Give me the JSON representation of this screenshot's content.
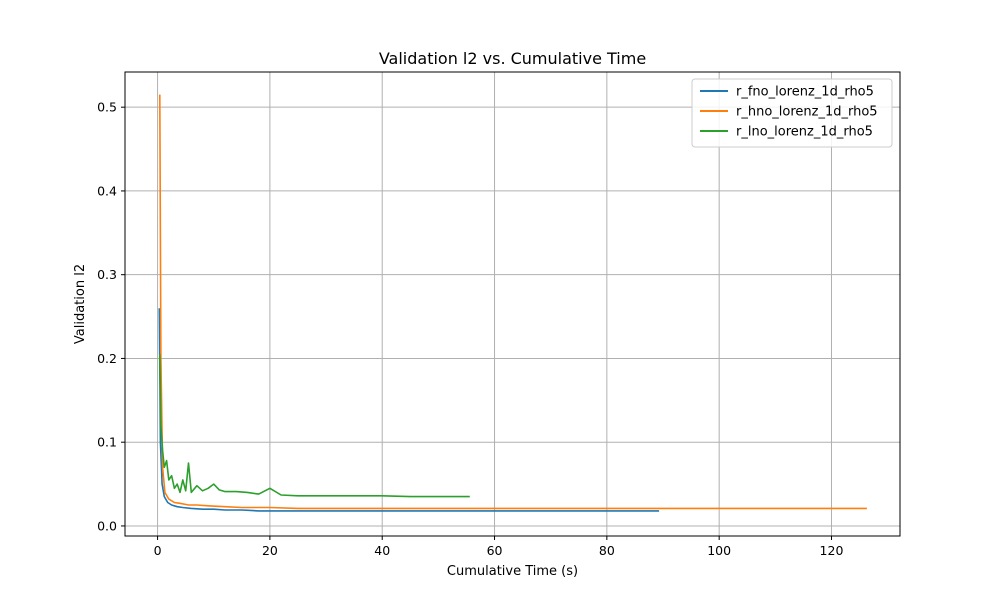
{
  "chart_data": {
    "type": "line",
    "title": "Validation l2 vs. Cumulative Time",
    "xlabel": "Cumulative Time (s)",
    "ylabel": "Validation l2",
    "xlim": [
      -5.8,
      132.2
    ],
    "ylim": [
      -0.012,
      0.542
    ],
    "xticks": [
      0,
      20,
      40,
      60,
      80,
      100,
      120
    ],
    "yticks": [
      0.0,
      0.1,
      0.2,
      0.3,
      0.4,
      0.5
    ],
    "grid": true,
    "legend_position": "top-right",
    "series": [
      {
        "name": "r_fno_lorenz_1d_rho5",
        "color": "#1f77b4",
        "x": [
          0.3,
          0.5,
          0.8,
          1.2,
          1.8,
          2.5,
          3.5,
          4.5,
          6,
          8,
          10,
          12,
          15,
          18,
          20,
          25,
          30,
          40,
          50,
          60,
          70,
          80,
          89.3
        ],
        "y": [
          0.26,
          0.1,
          0.05,
          0.035,
          0.028,
          0.025,
          0.023,
          0.022,
          0.021,
          0.02,
          0.02,
          0.019,
          0.019,
          0.018,
          0.018,
          0.018,
          0.018,
          0.018,
          0.018,
          0.018,
          0.018,
          0.018,
          0.018
        ]
      },
      {
        "name": "r_hno_lorenz_1d_rho5",
        "color": "#ff7f0e",
        "x": [
          0.4,
          0.6,
          0.9,
          1.3,
          2.0,
          3.0,
          4.0,
          5.5,
          7,
          9,
          12,
          15,
          20,
          25,
          30,
          40,
          50,
          60,
          70,
          80,
          90,
          100,
          110,
          120,
          126.3
        ],
        "y": [
          0.515,
          0.2,
          0.07,
          0.04,
          0.032,
          0.028,
          0.027,
          0.025,
          0.025,
          0.024,
          0.023,
          0.022,
          0.022,
          0.021,
          0.021,
          0.021,
          0.021,
          0.021,
          0.021,
          0.021,
          0.021,
          0.021,
          0.021,
          0.021,
          0.021
        ]
      },
      {
        "name": "r_lno_lorenz_1d_rho5",
        "color": "#2ca02c",
        "x": [
          0.4,
          0.6,
          0.9,
          1.2,
          1.6,
          2.0,
          2.5,
          3.0,
          3.5,
          4.0,
          4.5,
          5.0,
          5.5,
          6.0,
          7.0,
          8.0,
          9.0,
          10.0,
          11.0,
          12.0,
          14.0,
          16.0,
          18.0,
          20.0,
          22.0,
          25.0,
          28.0,
          32.0,
          36.0,
          40.0,
          45.0,
          50.0,
          55.6
        ],
        "y": [
          0.205,
          0.12,
          0.09,
          0.07,
          0.078,
          0.055,
          0.06,
          0.045,
          0.05,
          0.04,
          0.055,
          0.042,
          0.075,
          0.04,
          0.048,
          0.042,
          0.045,
          0.05,
          0.043,
          0.041,
          0.041,
          0.04,
          0.038,
          0.045,
          0.037,
          0.036,
          0.036,
          0.036,
          0.036,
          0.036,
          0.035,
          0.035,
          0.035
        ]
      }
    ]
  }
}
